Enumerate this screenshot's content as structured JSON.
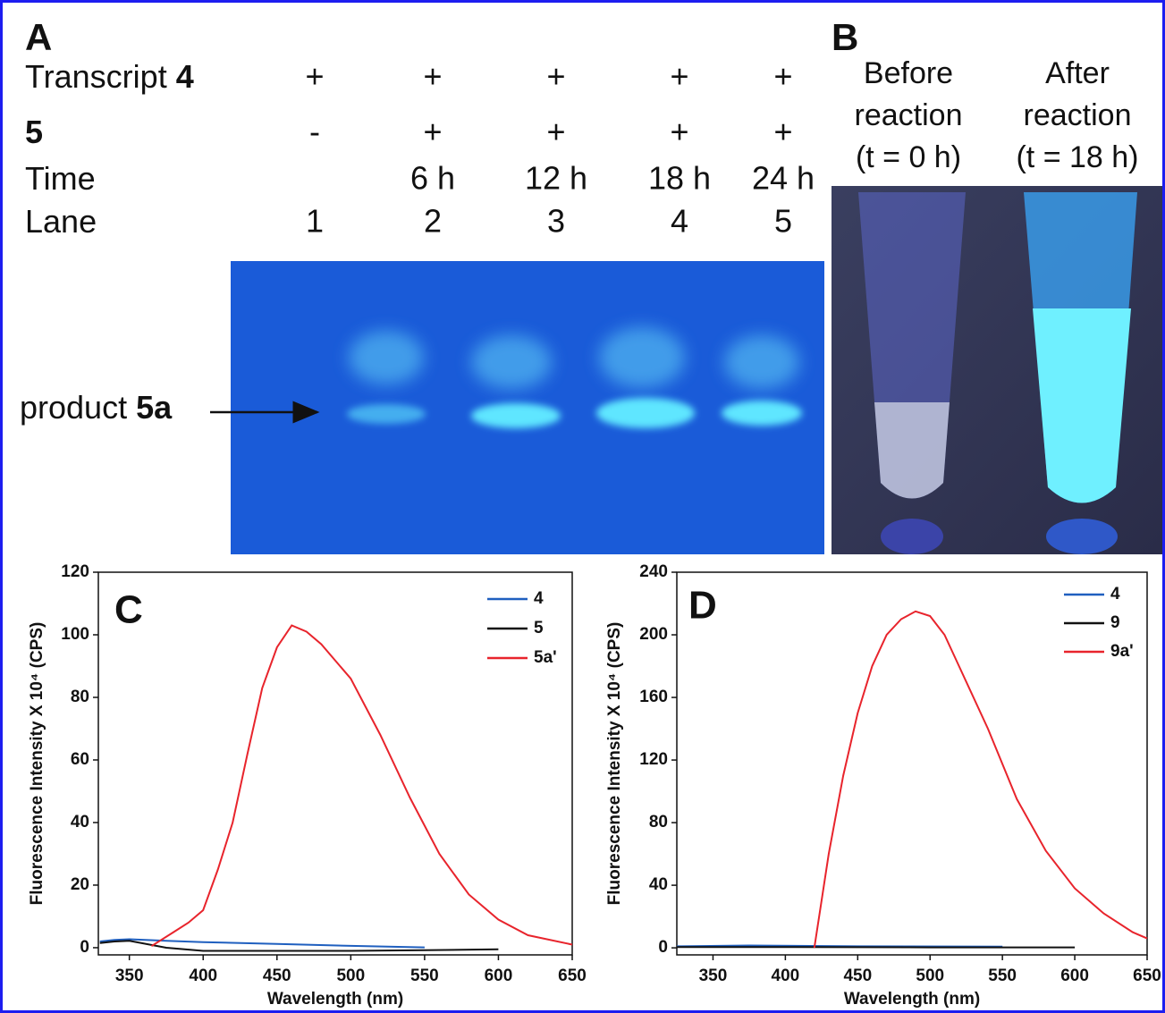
{
  "panel_a": {
    "label": "A",
    "rows": [
      {
        "label": "Transcript",
        "label_bold": "4",
        "lanes": [
          "+",
          "+",
          "+",
          "+",
          "+"
        ]
      },
      {
        "label_bold": "5",
        "lanes": [
          "-",
          "+",
          "+",
          "+",
          "+"
        ]
      },
      {
        "label": "Time",
        "lanes": [
          null,
          "6 h",
          "12 h",
          "18 h",
          "24 h"
        ]
      },
      {
        "label": "Lane",
        "lanes": [
          "1",
          "2",
          "3",
          "4",
          "5"
        ]
      }
    ],
    "product": "product",
    "product_bold": "5a"
  },
  "panel_b": {
    "label": "B",
    "columns": [
      [
        "Before",
        "reaction",
        "(t = 0 h)"
      ],
      [
        "After",
        "reaction",
        "(t = 18 h)"
      ]
    ]
  },
  "chart_data": [
    {
      "type": "line",
      "panel_label": "C",
      "xlabel": "Wavelength (nm)",
      "ylabel": "Fluorescence Intensity X 10⁴ (CPS)",
      "xlim": [
        329,
        650
      ],
      "ylim": [
        -2.3,
        120
      ],
      "xticks": [
        350,
        400,
        450,
        500,
        550,
        600,
        650
      ],
      "yticks": [
        0,
        20,
        40,
        60,
        80,
        100,
        120
      ],
      "series": [
        {
          "name": "4",
          "color": "#1f5fbf",
          "x": [
            330,
            340,
            350,
            375,
            400,
            450,
            500,
            550
          ],
          "values": [
            2,
            2.5,
            2.7,
            2.2,
            1.8,
            1.2,
            0.6,
            0.1
          ]
        },
        {
          "name": "5",
          "color": "#111111",
          "x": [
            330,
            340,
            350,
            375,
            400,
            450,
            500,
            550,
            600
          ],
          "values": [
            1.5,
            2,
            2.2,
            0,
            -1,
            -1,
            -1,
            -0.8,
            -0.5
          ]
        },
        {
          "name": "5a'",
          "color": "#e8242c",
          "x": [
            365,
            380,
            390,
            400,
            410,
            420,
            430,
            440,
            450,
            460,
            470,
            480,
            500,
            520,
            540,
            560,
            580,
            600,
            620,
            650
          ],
          "values": [
            0.5,
            5,
            8,
            12,
            25,
            40,
            62,
            83,
            96,
            103,
            101,
            97,
            86,
            68,
            48,
            30,
            17,
            9,
            4,
            1
          ]
        }
      ]
    },
    {
      "type": "line",
      "panel_label": "D",
      "xlabel": "Wavelength (nm)",
      "ylabel": "Fluorescence Intensity X 10⁴ (CPS)",
      "xlim": [
        325,
        650
      ],
      "ylim": [
        -4.5,
        240
      ],
      "xticks": [
        350,
        400,
        450,
        500,
        550,
        600,
        650
      ],
      "yticks": [
        0,
        40,
        80,
        120,
        160,
        200,
        240
      ],
      "series": [
        {
          "name": "4",
          "color": "#1f5fbf",
          "x": [
            325,
            375,
            450,
            550
          ],
          "values": [
            1,
            1.5,
            1,
            0.8
          ]
        },
        {
          "name": "9",
          "color": "#111111",
          "x": [
            325,
            400,
            500,
            600
          ],
          "values": [
            0.5,
            0.5,
            0.3,
            0.3
          ]
        },
        {
          "name": "9a'",
          "color": "#e8242c",
          "x": [
            420,
            430,
            440,
            450,
            460,
            470,
            480,
            490,
            500,
            510,
            520,
            540,
            560,
            580,
            600,
            620,
            640,
            650
          ],
          "values": [
            0,
            60,
            110,
            150,
            180,
            200,
            210,
            215,
            212,
            200,
            180,
            140,
            95,
            62,
            38,
            22,
            10,
            6
          ]
        }
      ]
    }
  ]
}
